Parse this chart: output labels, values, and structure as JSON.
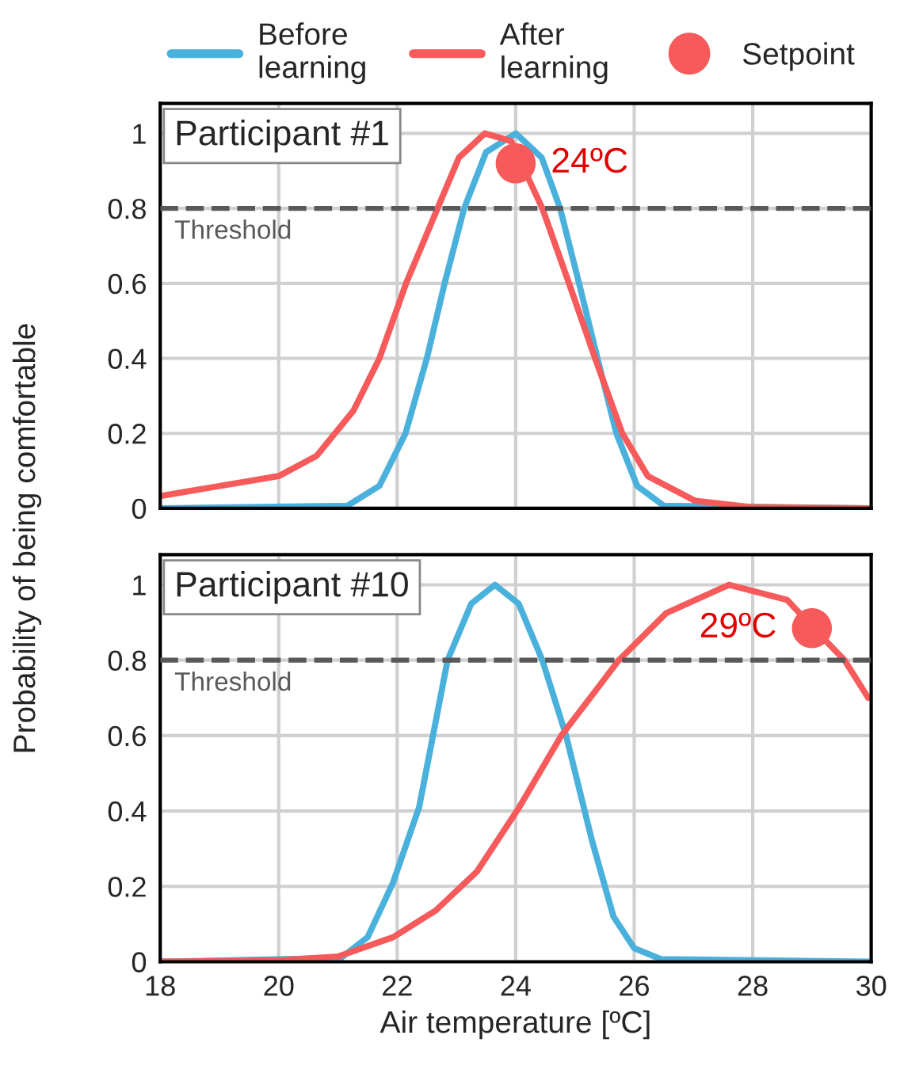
{
  "chart_data": [
    {
      "type": "line",
      "title": "Participant #1",
      "ylabel": "Probability of being comfortable",
      "xlim": [
        18,
        30
      ],
      "ylim": [
        0,
        1.08
      ],
      "xticks": [
        18,
        20,
        22,
        24,
        26,
        28,
        30
      ],
      "yticks": [
        0,
        0.2,
        0.4,
        0.6,
        0.8,
        1
      ],
      "grid": true,
      "tick_labels": "y",
      "legend": "top",
      "series": [
        {
          "name": "Before learning",
          "color": "#4ab0dc",
          "x": [
            18,
            21.16,
            21.7,
            22.14,
            22.5,
            22.8,
            23.13,
            23.5,
            24,
            24.44,
            24.75,
            25.07,
            25.38,
            25.7,
            26.05,
            26.5,
            30
          ],
          "values": [
            0,
            0.007,
            0.06,
            0.2,
            0.4,
            0.6,
            0.8,
            0.95,
            1.0,
            0.935,
            0.8,
            0.6,
            0.4,
            0.2,
            0.06,
            0.007,
            0
          ]
        },
        {
          "name": "After learning",
          "color": "#f65a5a",
          "x": [
            18,
            20,
            20.64,
            21.26,
            21.7,
            22.15,
            22.68,
            23.04,
            23.48,
            23.92,
            24.45,
            24.9,
            25.34,
            25.8,
            26.23,
            27.03,
            28,
            30
          ],
          "values": [
            0.033,
            0.086,
            0.14,
            0.26,
            0.4,
            0.6,
            0.8,
            0.935,
            1.0,
            0.98,
            0.8,
            0.6,
            0.4,
            0.2,
            0.086,
            0.02,
            0.003,
            0
          ]
        },
        {
          "name": "Setpoint",
          "type": "scatter",
          "marker": "circle",
          "color": "#f65a5a",
          "x": [
            24
          ],
          "values": [
            0.92
          ]
        }
      ],
      "ref_lines": [
        {
          "axis": "y",
          "value": 0.8,
          "label": "Threshold",
          "color": "#595959",
          "line_style": "dashed"
        }
      ],
      "annotations": [
        {
          "text": "24ºC",
          "x": 24,
          "y": 0.92
        }
      ]
    },
    {
      "type": "line",
      "title": "Participant #10",
      "xlabel": "Air temperature [ºC]",
      "xlim": [
        18,
        30
      ],
      "ylim": [
        0,
        1.08
      ],
      "xticks": [
        18,
        20,
        22,
        24,
        26,
        28,
        30
      ],
      "yticks": [
        0,
        0.2,
        0.4,
        0.6,
        0.8,
        1
      ],
      "grid": true,
      "series": [
        {
          "color": "#4ab0dc",
          "x": [
            18,
            21.05,
            21.5,
            21.93,
            22.37,
            22.85,
            23.25,
            23.65,
            24.05,
            24.45,
            24.85,
            25.29,
            25.65,
            26.0,
            26.45,
            30
          ],
          "values": [
            0,
            0.01,
            0.065,
            0.21,
            0.41,
            0.8,
            0.95,
            1.0,
            0.95,
            0.8,
            0.6,
            0.32,
            0.12,
            0.036,
            0.007,
            0
          ]
        },
        {
          "color": "#f65a5a",
          "x": [
            18,
            20,
            21,
            21.93,
            22.65,
            23.35,
            24.06,
            24.77,
            25.74,
            26.54,
            27.6,
            28.58,
            29.06,
            29.55,
            29.95
          ],
          "values": [
            0,
            0.004,
            0.014,
            0.065,
            0.136,
            0.24,
            0.41,
            0.6,
            0.8,
            0.925,
            1.0,
            0.96,
            0.88,
            0.8,
            0.7
          ]
        },
        {
          "type": "scatter",
          "marker": "circle",
          "color": "#f65a5a",
          "x": [
            29
          ],
          "values": [
            0.885
          ]
        }
      ],
      "ref_lines": [
        {
          "axis": "y",
          "value": 0.8,
          "label": "Threshold",
          "color": "#595959",
          "line_style": "dashed"
        }
      ],
      "annotations": [
        {
          "text": "29ºC",
          "x": 29,
          "y": 0.885
        }
      ]
    }
  ]
}
